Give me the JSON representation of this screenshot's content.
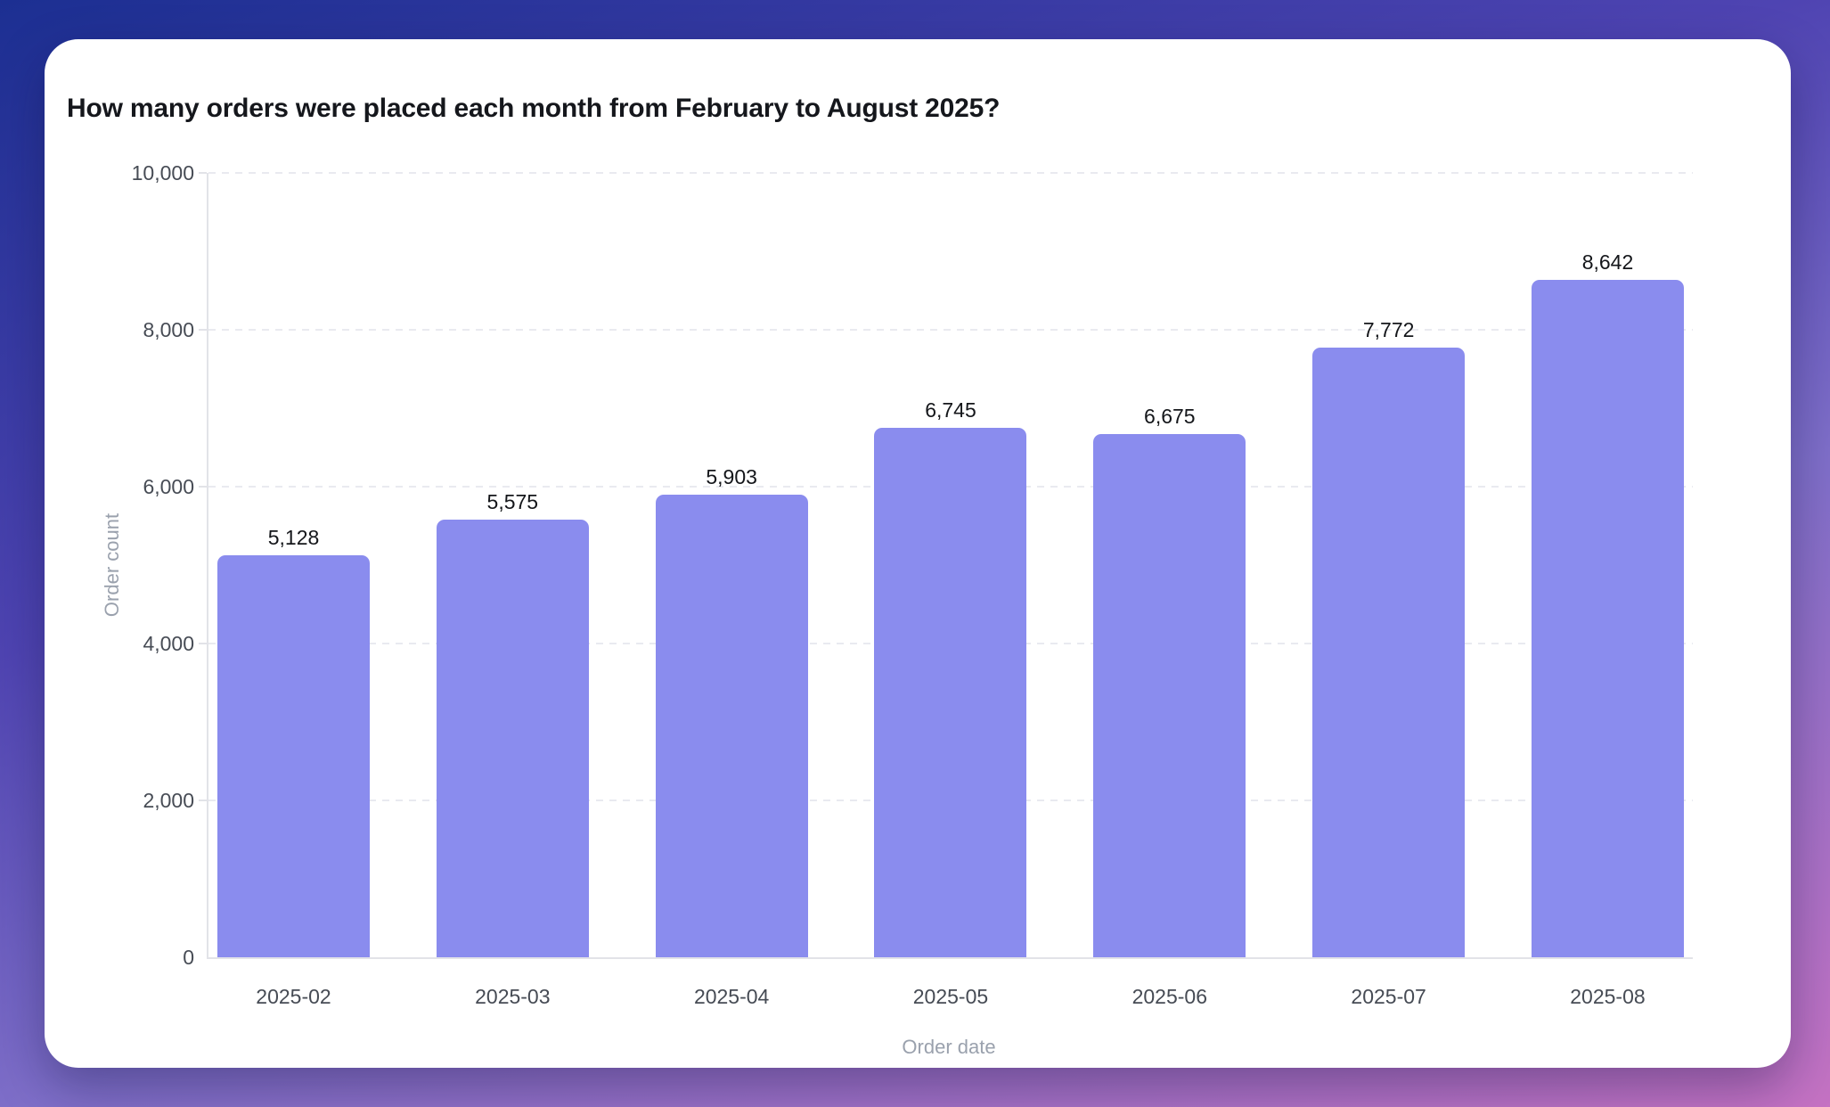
{
  "page": {
    "background_gradient": [
      "#1c2f92",
      "#4f44b2",
      "#7f6fc9",
      "#c572c3"
    ],
    "card_background": "#ffffff"
  },
  "card": {
    "title": "How many orders were placed each month from February to August 2025?"
  },
  "chart_data": {
    "type": "bar",
    "title": "How many orders were placed each month from February to August 2025?",
    "categories": [
      "2025-02",
      "2025-03",
      "2025-04",
      "2025-05",
      "2025-06",
      "2025-07",
      "2025-08"
    ],
    "values": [
      5128,
      5575,
      5903,
      6745,
      6675,
      7772,
      8642
    ],
    "value_labels": [
      "5,128",
      "5,575",
      "5,903",
      "6,745",
      "6,675",
      "7,772",
      "8,642"
    ],
    "xlabel": "Order date",
    "ylabel": "Order count",
    "ylim": [
      0,
      10000
    ],
    "yticks": [
      0,
      2000,
      4000,
      6000,
      8000,
      10000
    ],
    "ytick_labels": [
      "0",
      "2,000",
      "4,000",
      "6,000",
      "8,000",
      "10,000"
    ],
    "grid": "horizontal-dashed",
    "legend": "none",
    "bar_color": "#8a8cee",
    "axis_line_color": "#e2e3e8",
    "gridline_color": "#e9eaf0",
    "tick_label_color": "#474c55",
    "axis_title_color": "#9aa1ad",
    "value_label_color": "#14161a"
  }
}
